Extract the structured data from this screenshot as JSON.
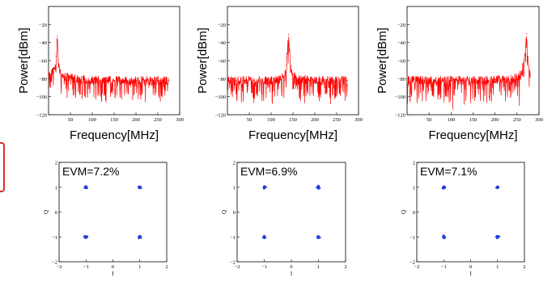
{
  "chart_data": [
    {
      "type": "line",
      "panel": "spectrum",
      "xlabel": "Frequency[MHz]",
      "ylabel": "Power[dBm]",
      "xlim": [
        0,
        300
      ],
      "ylim": [
        -120,
        0
      ],
      "xticks": [
        "50",
        "100",
        "150",
        "200",
        "250",
        "300"
      ],
      "yticks": [
        "−120",
        "−100",
        "−80",
        "−60",
        "−40",
        "−20"
      ],
      "series": [
        {
          "color": "#ff0000",
          "x": [
            0,
            10,
            15,
            18,
            20,
            22,
            25,
            30,
            40,
            60,
            80,
            100,
            120,
            140,
            160,
            180,
            200,
            220,
            240,
            260,
            275
          ],
          "y": [
            -78,
            -72,
            -65,
            -55,
            -33,
            -60,
            -72,
            -76,
            -78,
            -80,
            -81,
            -81,
            -82,
            -82,
            -82,
            -82,
            -82,
            -82,
            -82,
            -82,
            -82
          ]
        }
      ]
    },
    {
      "type": "line",
      "panel": "spectrum",
      "xlabel": "Frequency[MHz]",
      "ylabel": "Power[dBm]",
      "xlim": [
        0,
        300
      ],
      "ylim": [
        -120,
        0
      ],
      "xticks": [
        "50",
        "100",
        "150",
        "200",
        "250",
        "300"
      ],
      "yticks": [
        "−120",
        "−100",
        "−80",
        "−60",
        "−40",
        "−20"
      ],
      "series": [
        {
          "color": "#ff0000",
          "x": [
            0,
            20,
            40,
            60,
            80,
            100,
            120,
            130,
            135,
            138,
            140,
            142,
            145,
            150,
            160,
            180,
            200,
            220,
            240,
            260,
            275
          ],
          "y": [
            -82,
            -82,
            -82,
            -82,
            -82,
            -82,
            -81,
            -78,
            -65,
            -45,
            -31,
            -48,
            -66,
            -76,
            -80,
            -81,
            -82,
            -82,
            -82,
            -82,
            -82
          ]
        }
      ]
    },
    {
      "type": "line",
      "panel": "spectrum",
      "xlabel": "Frequency[MHz]",
      "ylabel": "Power[dBm]",
      "xlim": [
        0,
        300
      ],
      "ylim": [
        -120,
        0
      ],
      "xticks": [
        "50",
        "100",
        "150",
        "200",
        "250",
        "300"
      ],
      "yticks": [
        "−120",
        "−100",
        "−80",
        "−60",
        "−40",
        "−20"
      ],
      "series": [
        {
          "color": "#ff0000",
          "x": [
            0,
            20,
            40,
            60,
            80,
            100,
            120,
            140,
            160,
            180,
            200,
            220,
            240,
            255,
            262,
            266,
            270,
            272,
            275,
            278,
            280
          ],
          "y": [
            -82,
            -82,
            -82,
            -82,
            -82,
            -82,
            -82,
            -82,
            -82,
            -82,
            -81,
            -81,
            -80,
            -78,
            -72,
            -60,
            -45,
            -30,
            -55,
            -70,
            -76
          ]
        }
      ]
    },
    {
      "type": "scatter",
      "panel": "constellation",
      "annotation": "EVM=7.2%",
      "xlabel": "I",
      "ylabel": "Q",
      "xlim": [
        -2,
        2
      ],
      "ylim": [
        -2,
        2
      ],
      "xticks": [
        "−2",
        "−1",
        "0",
        "1",
        "2"
      ],
      "yticks": [
        "−2",
        "−1",
        "0",
        "1",
        "2"
      ],
      "series": [
        {
          "color": "#1f3fd6",
          "points": [
            [
              -1,
              1
            ],
            [
              1,
              1
            ],
            [
              -1,
              -1
            ],
            [
              1,
              -1
            ]
          ]
        }
      ]
    },
    {
      "type": "scatter",
      "panel": "constellation",
      "annotation": "EVM=6.9%",
      "xlabel": "I",
      "ylabel": "Q",
      "xlim": [
        -2,
        2
      ],
      "ylim": [
        -2,
        2
      ],
      "xticks": [
        "−2",
        "−1",
        "0",
        "1",
        "2"
      ],
      "yticks": [
        "−2",
        "−1",
        "0",
        "1",
        "2"
      ],
      "series": [
        {
          "color": "#1f3fd6",
          "points": [
            [
              -1,
              1
            ],
            [
              1,
              1
            ],
            [
              -1,
              -1
            ],
            [
              1,
              -1
            ]
          ]
        }
      ]
    },
    {
      "type": "scatter",
      "panel": "constellation",
      "annotation": "EVM=7.1%",
      "xlabel": "I",
      "ylabel": "Q",
      "xlim": [
        -2,
        2
      ],
      "ylim": [
        -2,
        2
      ],
      "xticks": [
        "−2",
        "−1",
        "0",
        "1",
        "2"
      ],
      "yticks": [
        "−2",
        "−1",
        "0",
        "1",
        "2"
      ],
      "series": [
        {
          "color": "#1f3fd6",
          "points": [
            [
              -1,
              1
            ],
            [
              1,
              1
            ],
            [
              -1,
              -1
            ],
            [
              1,
              -1
            ]
          ]
        }
      ]
    }
  ]
}
